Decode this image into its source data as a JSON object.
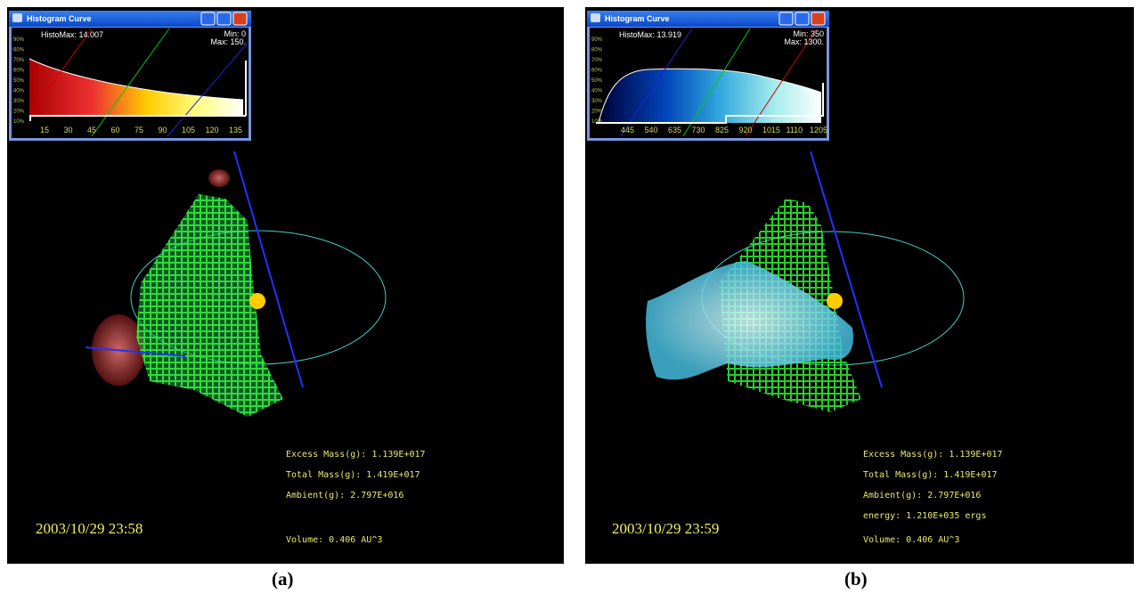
{
  "panels": [
    {
      "window": {
        "title": "Histogram Curve",
        "histo_max": "HistoMax: 14.007",
        "min": "Min: 0",
        "max": "Max: 150.",
        "y_labels": [
          "90%",
          "80%",
          "70%",
          "60%",
          "50%",
          "40%",
          "30%",
          "20%",
          "10%"
        ],
        "x_labels": [
          "15",
          "30",
          "45",
          "60",
          "75",
          "90",
          "105",
          "120",
          "135"
        ]
      },
      "stats": [
        "Excess Mass(g): 1.139E+017",
        "Total Mass(g): 1.419E+017",
        "Ambient(g): 2.797E+016"
      ],
      "volume": "Volume: 0.406 AU^3",
      "timestamp": "2003/10/29 23:58",
      "caption": "(a)"
    },
    {
      "window": {
        "title": "Histogram Curve",
        "histo_max": "HistoMax: 13.919",
        "min": "Min: 350",
        "max": "Max: 1300.",
        "y_labels": [
          "90%",
          "80%",
          "70%",
          "60%",
          "50%",
          "40%",
          "30%",
          "20%",
          "10%"
        ],
        "x_labels": [
          "445",
          "540",
          "635",
          "730",
          "825",
          "920",
          "1015",
          "1110",
          "1205"
        ]
      },
      "stats": [
        "Excess Mass(g): 1.139E+017",
        "Total Mass(g): 1.419E+017",
        "Ambient(g): 2.797E+016",
        "energy: 1.210E+035 ergs"
      ],
      "volume": "Volume: 0.406 AU^3",
      "timestamp": "2003/10/29 23:59",
      "caption": "(b)"
    }
  ]
}
